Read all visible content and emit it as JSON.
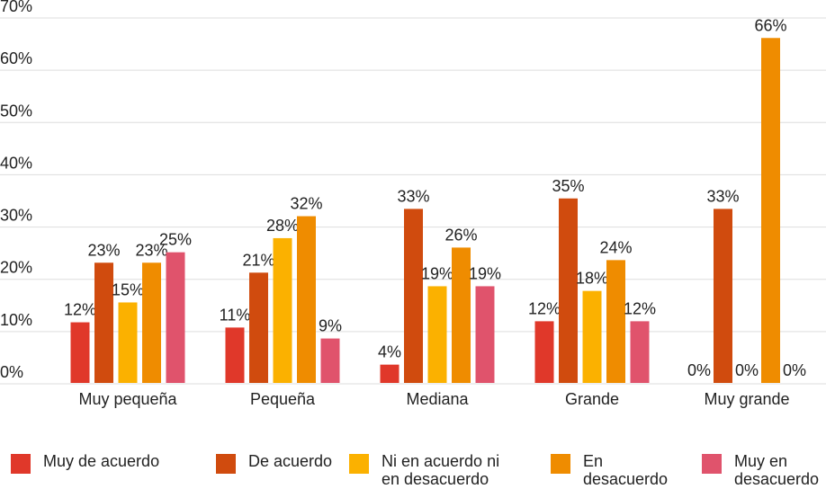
{
  "chart_data": {
    "type": "bar",
    "categories": [
      "Muy pequeña",
      "Pequeña",
      "Mediana",
      "Grande",
      "Muy grande"
    ],
    "series": [
      {
        "name": "Muy de acuerdo",
        "color": "#e0382a",
        "values": [
          11.6,
          10.6,
          3.5,
          11.8,
          0
        ],
        "value_labels": [
          "12%",
          "11%",
          "4%",
          "12%",
          "0%"
        ]
      },
      {
        "name": "De acuerdo",
        "color": "#d04b0e",
        "values": [
          23,
          21.1,
          33.3,
          35.3,
          33.3
        ],
        "value_labels": [
          "23%",
          "21%",
          "33%",
          "35%",
          "33%"
        ]
      },
      {
        "name": "Ni en acuerdo ni en desacuerdo",
        "color": "#fbb100",
        "values": [
          15.4,
          27.7,
          18.5,
          17.6,
          0
        ],
        "value_labels": [
          "15%",
          "28%",
          "19%",
          "18%",
          "0%"
        ]
      },
      {
        "name": "En desacuerdo",
        "color": "#ef8c00",
        "values": [
          23,
          31.9,
          25.9,
          23.5,
          66
        ],
        "value_labels": [
          "23%",
          "32%",
          "26%",
          "24%",
          "66%"
        ]
      },
      {
        "name": "Muy en desacuerdo",
        "color": "#e0536c",
        "values": [
          25,
          8.5,
          18.5,
          11.8,
          0
        ],
        "value_labels": [
          "25%",
          "9%",
          "19%",
          "12%",
          "0%"
        ]
      }
    ],
    "ylim": [
      0,
      70
    ],
    "yticks": [
      {
        "value": 0,
        "label": "0%"
      },
      {
        "value": 10,
        "label": "10%"
      },
      {
        "value": 20,
        "label": "20%"
      },
      {
        "value": 30,
        "label": "30%"
      },
      {
        "value": 40,
        "label": "40%"
      },
      {
        "value": 50,
        "label": "50%"
      },
      {
        "value": 60,
        "label": "60%"
      },
      {
        "value": 70,
        "label": "70%"
      }
    ],
    "grid": true,
    "legend": "bottom"
  }
}
